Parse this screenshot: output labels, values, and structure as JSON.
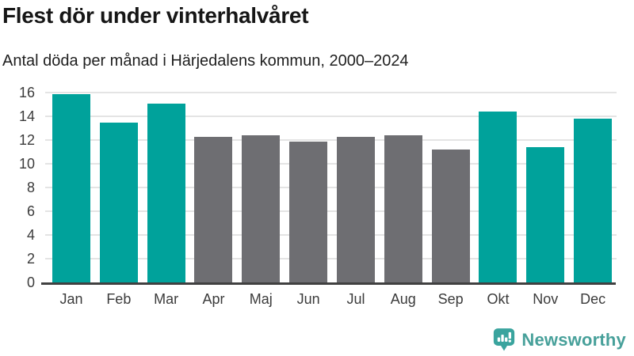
{
  "header": {
    "title": "Flest dör under vinterhalvåret",
    "subtitle": "Antal döda per månad i Härjedalens kommun, 2000–2024"
  },
  "chart_data": {
    "type": "bar",
    "title": "Flest dör under vinterhalvåret",
    "subtitle": "Antal döda per månad i Härjedalens kommun, 2000–2024",
    "categories": [
      "Jan",
      "Feb",
      "Mar",
      "Apr",
      "Maj",
      "Jun",
      "Jul",
      "Aug",
      "Sep",
      "Okt",
      "Nov",
      "Dec"
    ],
    "values": [
      15.9,
      13.5,
      15.1,
      12.3,
      12.4,
      11.9,
      12.3,
      12.4,
      11.2,
      14.4,
      11.4,
      13.8
    ],
    "bar_colors": [
      "highlight",
      "highlight",
      "highlight",
      "neutral",
      "neutral",
      "neutral",
      "neutral",
      "neutral",
      "neutral",
      "highlight",
      "highlight",
      "highlight"
    ],
    "colors": {
      "highlight": "#00a29b",
      "neutral": "#6e6e72"
    },
    "xlabel": "",
    "ylabel": "",
    "ylim": [
      0,
      16
    ],
    "yticks": [
      0,
      2,
      4,
      6,
      8,
      10,
      12,
      14,
      16
    ],
    "grid": "horizontal",
    "legend": "none"
  },
  "branding": {
    "logo_text": "Newsworthy",
    "logo_color": "#47a09a",
    "logo_icon": "bar-chart-speech-bubble-icon"
  }
}
